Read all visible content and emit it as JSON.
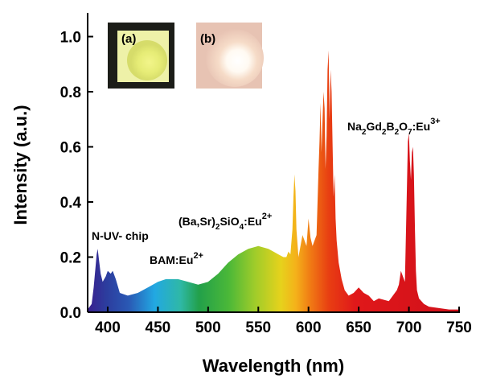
{
  "chart_data": {
    "type": "area",
    "title": "",
    "xlabel": "Wavelength (nm)",
    "ylabel": "Intensity (a.u.)",
    "xlim": [
      380,
      750
    ],
    "ylim": [
      0,
      1.05
    ],
    "x_ticks": [
      "400",
      "450",
      "500",
      "550",
      "600",
      "650",
      "700",
      "750"
    ],
    "y_ticks": [
      "0.0",
      "0.2",
      "0.4",
      "0.6",
      "0.8",
      "1.0"
    ],
    "fill": "visible-spectrum gradient (violet to red)",
    "series": [
      {
        "x": [
          380,
          384,
          386,
          388,
          389,
          390,
          391,
          393,
          395,
          398,
          400,
          403,
          405,
          408,
          412,
          420,
          430,
          440,
          450,
          458,
          465,
          470,
          480,
          490,
          500,
          510,
          520,
          530,
          540,
          550,
          555,
          560,
          565,
          570,
          575,
          578,
          580,
          582,
          584,
          585,
          586,
          587,
          588,
          590,
          592,
          594,
          596,
          598,
          600,
          602,
          604,
          606,
          608,
          610,
          611,
          612,
          613,
          614,
          615,
          616,
          617,
          618,
          619,
          620,
          621,
          622,
          623,
          624,
          625,
          626,
          627,
          628,
          630,
          633,
          636,
          640,
          645,
          650,
          655,
          660,
          665,
          670,
          680,
          688,
          690,
          692,
          694,
          696,
          698,
          699,
          700,
          701,
          702,
          703,
          704,
          705,
          706,
          707,
          708,
          710,
          715,
          720,
          730,
          740,
          750
        ],
        "y": [
          0.01,
          0.03,
          0.09,
          0.17,
          0.21,
          0.23,
          0.2,
          0.14,
          0.11,
          0.13,
          0.15,
          0.14,
          0.15,
          0.12,
          0.07,
          0.06,
          0.07,
          0.09,
          0.11,
          0.12,
          0.12,
          0.12,
          0.11,
          0.1,
          0.11,
          0.14,
          0.18,
          0.21,
          0.23,
          0.24,
          0.235,
          0.23,
          0.22,
          0.21,
          0.2,
          0.2,
          0.22,
          0.21,
          0.3,
          0.42,
          0.5,
          0.44,
          0.3,
          0.2,
          0.24,
          0.28,
          0.26,
          0.24,
          0.34,
          0.27,
          0.24,
          0.26,
          0.28,
          0.52,
          0.62,
          0.76,
          0.58,
          0.7,
          0.8,
          0.74,
          0.52,
          0.64,
          0.88,
          0.95,
          0.7,
          0.88,
          0.8,
          0.6,
          0.42,
          0.5,
          0.34,
          0.26,
          0.18,
          0.12,
          0.08,
          0.06,
          0.07,
          0.09,
          0.07,
          0.06,
          0.04,
          0.05,
          0.04,
          0.08,
          0.1,
          0.15,
          0.13,
          0.11,
          0.45,
          0.62,
          0.65,
          0.55,
          0.48,
          0.58,
          0.6,
          0.5,
          0.3,
          0.15,
          0.08,
          0.05,
          0.03,
          0.02,
          0.015,
          0.01,
          0.01
        ]
      }
    ],
    "annotations": [
      {
        "id": "nuv",
        "text": "N-UV- chip"
      },
      {
        "id": "bam",
        "text": "BAM:Eu2+"
      },
      {
        "id": "basr",
        "text": "(Ba,Sr)2SiO4:Eu2+"
      },
      {
        "id": "nagd",
        "text": "Na2Gd2B2O7:Eu3+"
      }
    ],
    "insets": [
      {
        "label": "(a)",
        "description": "photo of unlit LED chip"
      },
      {
        "label": "(b)",
        "description": "photo of lit white LED"
      }
    ]
  },
  "labels": {
    "nuv": "N-UV- chip",
    "bam_main": "BAM:Eu",
    "bam_sup": "2+",
    "basr_p1": "(Ba,Sr)",
    "basr_s1": "2",
    "basr_p2": "SiO",
    "basr_s2": "4",
    "basr_p3": ":Eu",
    "basr_sup": "2+",
    "nagd_p1": "Na",
    "nagd_s1": "2",
    "nagd_p2": "Gd",
    "nagd_s2": "2",
    "nagd_p3": "B",
    "nagd_s3": "2",
    "nagd_p4": "O",
    "nagd_s4": "7",
    "nagd_p5": ":Eu",
    "nagd_sup": "3+",
    "inset_a": "(a)",
    "inset_b": "(b)"
  }
}
